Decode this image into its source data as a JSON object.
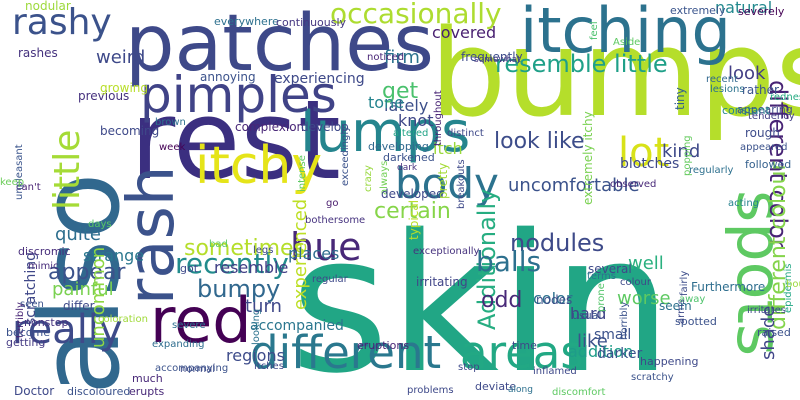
{
  "words": [
    {
      "text": "skin",
      "color": "#21a685"
    },
    {
      "text": "bumps",
      "color": "#b5de2b"
    },
    {
      "text": "also",
      "color": "#31688e"
    },
    {
      "text": "rest",
      "color": "#3b2f80"
    },
    {
      "text": "patches",
      "color": "#3e4989"
    },
    {
      "text": "itching",
      "color": "#2c728e"
    },
    {
      "text": "spots",
      "color": "#5ec962"
    },
    {
      "text": "lumps",
      "color": "#25858e"
    },
    {
      "text": "itchy",
      "color": "#e5e419"
    },
    {
      "text": "red",
      "color": "#440154"
    },
    {
      "text": "rash",
      "color": "#3b528b"
    },
    {
      "text": "pimples",
      "color": "#404387"
    },
    {
      "text": "different",
      "color": "#2a788e"
    },
    {
      "text": "areas",
      "color": "#22a884"
    },
    {
      "text": "body",
      "color": "#2c728e"
    },
    {
      "text": "hue",
      "color": "#482878"
    },
    {
      "text": "lot",
      "color": "#d8e219"
    },
    {
      "text": "really",
      "color": "#3e4a89"
    },
    {
      "text": "rashy",
      "color": "#3b528b"
    },
    {
      "text": "little",
      "color": "#a5db36"
    },
    {
      "text": "occasionally",
      "color": "#addc30"
    },
    {
      "text": "resemble little",
      "color": "#1fa088"
    },
    {
      "text": "look like",
      "color": "#3d4d8a"
    },
    {
      "text": "different color",
      "color": "#482475"
    },
    {
      "text": "certain",
      "color": "#86d549"
    },
    {
      "text": "recently",
      "color": "#228c8d"
    },
    {
      "text": "Additionally",
      "color": "#26ad81"
    },
    {
      "text": "nodules",
      "color": "#3e4a89"
    },
    {
      "text": "balls",
      "color": "#2d708e"
    },
    {
      "text": "bumpy",
      "color": "#31688e"
    },
    {
      "text": "sometimes",
      "color": "#b5de2b"
    },
    {
      "text": "appear",
      "color": "#3b528b"
    },
    {
      "text": "different colour",
      "color": "#84d44b"
    },
    {
      "text": "uncomfortable",
      "color": "#3b528b"
    },
    {
      "text": "kind",
      "color": "#3e4989"
    },
    {
      "text": "look",
      "color": "#433e85"
    },
    {
      "text": "lately",
      "color": "#3c4f8a"
    },
    {
      "text": "quite",
      "color": "#2e6f8e"
    },
    {
      "text": "weird",
      "color": "#3e4989"
    },
    {
      "text": "firm",
      "color": "#2c738e"
    },
    {
      "text": "get",
      "color": "#4ac16d"
    },
    {
      "text": "tone",
      "color": "#25848e"
    },
    {
      "text": "knot",
      "color": "#3f4788"
    },
    {
      "text": "covered",
      "color": "#481f70"
    },
    {
      "text": "natural",
      "color": "#23898e"
    },
    {
      "text": "strange",
      "color": "#2a778e"
    },
    {
      "text": "painful",
      "color": "#7ad151"
    },
    {
      "text": "well",
      "color": "#2ab07f"
    },
    {
      "text": "odd",
      "color": "#482878"
    },
    {
      "text": "worse",
      "color": "#5ec962"
    },
    {
      "text": "turn",
      "color": "#3f4889"
    },
    {
      "text": "resemble",
      "color": "#424086"
    },
    {
      "text": "shade",
      "color": "#404588"
    },
    {
      "text": "color",
      "color": "#2d718e"
    },
    {
      "text": "like",
      "color": "#3c508b"
    },
    {
      "text": "addition",
      "color": "#1e9c89"
    },
    {
      "text": "regions",
      "color": "#3e4c8a"
    },
    {
      "text": "hard",
      "color": "#404588"
    },
    {
      "text": "small",
      "color": "#3b528b"
    },
    {
      "text": "darker",
      "color": "#3a548c"
    },
    {
      "text": "experienced",
      "color": "#bddf26"
    },
    {
      "text": "uncommon",
      "color": "#8fd744"
    },
    {
      "text": "experiencing",
      "color": "#3e4989"
    },
    {
      "text": "places",
      "color": "#2e6d8e"
    },
    {
      "text": "accompanied",
      "color": "#2a768e"
    },
    {
      "text": "blotches",
      "color": "#3e4989"
    },
    {
      "text": "itch",
      "color": "#9bd93c"
    },
    {
      "text": "scratching",
      "color": "#3f4788"
    },
    {
      "text": "nodular",
      "color": "#9dd93b"
    },
    {
      "text": "rashes",
      "color": "#46337f"
    },
    {
      "text": "mimic",
      "color": "#472c7a"
    },
    {
      "text": "terribly",
      "color": "#482576"
    },
    {
      "text": "everywhere",
      "color": "#2d708e"
    },
    {
      "text": "continuously",
      "color": "#453781"
    },
    {
      "text": "extremely",
      "color": "#3a548c"
    },
    {
      "text": "severely",
      "color": "#440154"
    },
    {
      "text": "somewhat",
      "color": "#463480"
    },
    {
      "text": "noticed",
      "color": "#482576"
    },
    {
      "text": "frequently",
      "color": "#3e4c8a"
    },
    {
      "text": "lesions",
      "color": "#2c738e"
    },
    {
      "text": "previous",
      "color": "#46317e"
    },
    {
      "text": "growing",
      "color": "#b8de29"
    },
    {
      "text": "annoying",
      "color": "#3b528b"
    },
    {
      "text": "throughout",
      "color": "#482475"
    },
    {
      "text": "feel",
      "color": "#4ac16d"
    },
    {
      "text": "Aside",
      "color": "#5ec962"
    },
    {
      "text": "rather",
      "color": "#3a548c"
    },
    {
      "text": "redness",
      "color": "#25ab82"
    },
    {
      "text": "tendency",
      "color": "#433e85"
    },
    {
      "text": "appearing",
      "color": "#3e4989"
    },
    {
      "text": "constant",
      "color": "#25858e"
    },
    {
      "text": "recent",
      "color": "#31688e"
    },
    {
      "text": "brown",
      "color": "#2d708e"
    },
    {
      "text": "complexion",
      "color": "#482677"
    },
    {
      "text": "becoming",
      "color": "#3e4989"
    },
    {
      "text": "week",
      "color": "#440154"
    },
    {
      "text": "develop",
      "color": "#3e4989"
    },
    {
      "text": "developing",
      "color": "#31688e"
    },
    {
      "text": "darkened",
      "color": "#3b528b"
    },
    {
      "text": "dark",
      "color": "#46327e"
    },
    {
      "text": "altered",
      "color": "#20a386"
    },
    {
      "text": "distinct",
      "color": "#3e4989"
    },
    {
      "text": "tiny",
      "color": "#34618d"
    },
    {
      "text": "rough",
      "color": "#3e4c8a"
    },
    {
      "text": "appeared",
      "color": "#3b528b"
    },
    {
      "text": "followed",
      "color": "#34608d"
    },
    {
      "text": "regularly",
      "color": "#2d708e"
    },
    {
      "text": "extremely itchy",
      "color": "#7ad151"
    },
    {
      "text": "can't",
      "color": "#482173"
    },
    {
      "text": "unpleasant",
      "color": "#3a548c"
    },
    {
      "text": "discromic",
      "color": "#472d7b"
    },
    {
      "text": "intense",
      "color": "#5cc863"
    },
    {
      "text": "crazy",
      "color": "#98d83e"
    },
    {
      "text": "always",
      "color": "#73d056"
    },
    {
      "text": "go",
      "color": "#481b6d"
    },
    {
      "text": "exceedingly",
      "color": "#3b528b"
    },
    {
      "text": "developed",
      "color": "#3e4989"
    },
    {
      "text": "pretty",
      "color": "#a5db36"
    },
    {
      "text": "observed",
      "color": "#482878"
    },
    {
      "text": "popping",
      "color": "#65cb5e"
    },
    {
      "text": "acting",
      "color": "#26828e"
    },
    {
      "text": "bothersome",
      "color": "#46337f"
    },
    {
      "text": "days",
      "color": "#58c765"
    },
    {
      "text": "keep",
      "color": "#6ccd5a"
    },
    {
      "text": "got",
      "color": "#3e4989"
    },
    {
      "text": "bad",
      "color": "#5ec962"
    },
    {
      "text": "typical",
      "color": "#b8de29"
    },
    {
      "text": "breakouts",
      "color": "#3e4989"
    },
    {
      "text": "irritating",
      "color": "#404588"
    },
    {
      "text": "several",
      "color": "#3e4989"
    },
    {
      "text": "epidermis",
      "color": "#22a785"
    },
    {
      "text": "regular",
      "color": "#3e4989"
    },
    {
      "text": "exceptionally",
      "color": "#46327e"
    },
    {
      "text": "nodes",
      "color": "#3c4f8a"
    },
    {
      "text": "seem",
      "color": "#2d708e"
    },
    {
      "text": "usual",
      "color": "#3b528b"
    },
    {
      "text": "fairly",
      "color": "#3d4d8a"
    },
    {
      "text": "Furthermore",
      "color": "#2e6e8e"
    },
    {
      "text": "bouts",
      "color": "#9bd93c"
    },
    {
      "text": "spotted",
      "color": "#3b528b"
    },
    {
      "text": "away",
      "color": "#4ec36b"
    },
    {
      "text": "differ",
      "color": "#3e4a89"
    },
    {
      "text": "seen",
      "color": "#3b528b"
    },
    {
      "text": "nonstop",
      "color": "#46337f"
    },
    {
      "text": "coloration",
      "color": "#a0da39"
    },
    {
      "text": "severe",
      "color": "#2d708e"
    },
    {
      "text": "eruptions",
      "color": "#482475"
    },
    {
      "text": "legs",
      "color": "#3e4989"
    },
    {
      "text": "terms",
      "color": "#2c728e"
    },
    {
      "text": "happening",
      "color": "#3e4989"
    },
    {
      "text": "become",
      "color": "#3b528b"
    },
    {
      "text": "getting",
      "color": "#443a83"
    },
    {
      "text": "expanding",
      "color": "#2e6d8e"
    },
    {
      "text": "normal",
      "color": "#3e4989"
    },
    {
      "text": "itches",
      "color": "#3f4788"
    },
    {
      "text": "looking",
      "color": "#2c728e"
    },
    {
      "text": "time",
      "color": "#3e4989"
    },
    {
      "text": "prone",
      "color": "#52c569"
    },
    {
      "text": "colour",
      "color": "#3e4989"
    },
    {
      "text": "arms",
      "color": "#3e4a89"
    },
    {
      "text": "raised",
      "color": "#3b528b"
    },
    {
      "text": "inflamed",
      "color": "#3e4989"
    },
    {
      "text": "stop",
      "color": "#3e4989"
    },
    {
      "text": "irritates",
      "color": "#3e4989"
    },
    {
      "text": "horribly",
      "color": "#3b528b"
    },
    {
      "text": "accompanying",
      "color": "#3b528b"
    },
    {
      "text": "much",
      "color": "#482878"
    },
    {
      "text": "erupts",
      "color": "#482878"
    },
    {
      "text": "Doctor",
      "color": "#3e4989"
    },
    {
      "text": "discoloured",
      "color": "#3b528b"
    },
    {
      "text": "problems",
      "color": "#3e4989"
    },
    {
      "text": "deviate",
      "color": "#3e4989"
    },
    {
      "text": "discomfort",
      "color": "#5ec962"
    },
    {
      "text": "along",
      "color": "#2d708e"
    },
    {
      "text": "scratchy",
      "color": "#3b528b"
    }
  ]
}
